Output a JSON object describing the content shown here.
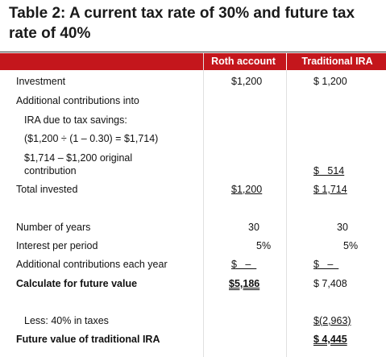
{
  "title": "Table 2: A current tax rate of 30% and future tax rate of 40%",
  "columns": {
    "roth": "Roth account",
    "traditional": "Traditional IRA"
  },
  "rows": {
    "investment": {
      "label": "Investment",
      "roth": "$1,200",
      "trad": "$ 1,200"
    },
    "additional": {
      "label": "Additional contributions into"
    },
    "ira_tax": {
      "label": "IRA due to tax savings:"
    },
    "formula": {
      "label": "($1,200 ÷ (1 – 0.30) = $1,714)"
    },
    "original_1": {
      "label": "$1,714 – $1,200 original"
    },
    "original_2": {
      "label": "contribution",
      "trad": "$   514"
    },
    "total": {
      "label": "Total invested",
      "roth": "$1,200",
      "trad": "$ 1,714"
    },
    "years": {
      "label": "Number of years",
      "roth": "30",
      "trad": "30"
    },
    "interest": {
      "label": "Interest per period",
      "roth": "5%",
      "trad": "5%"
    },
    "each_year": {
      "label": "Additional contributions each year",
      "roth": "$   –  ",
      "trad": "$   –  "
    },
    "future": {
      "label": "Calculate for future value",
      "roth": "$5,186",
      "trad": "$ 7,408"
    },
    "taxes": {
      "label": "Less: 40% in taxes",
      "trad": "$(2,963)"
    },
    "fv_trad": {
      "label": "Future value of traditional IRA",
      "trad": "$ 4,445"
    }
  },
  "colors": {
    "header_bg": "#c4161c",
    "header_text": "#ffffff",
    "text": "#111111"
  }
}
